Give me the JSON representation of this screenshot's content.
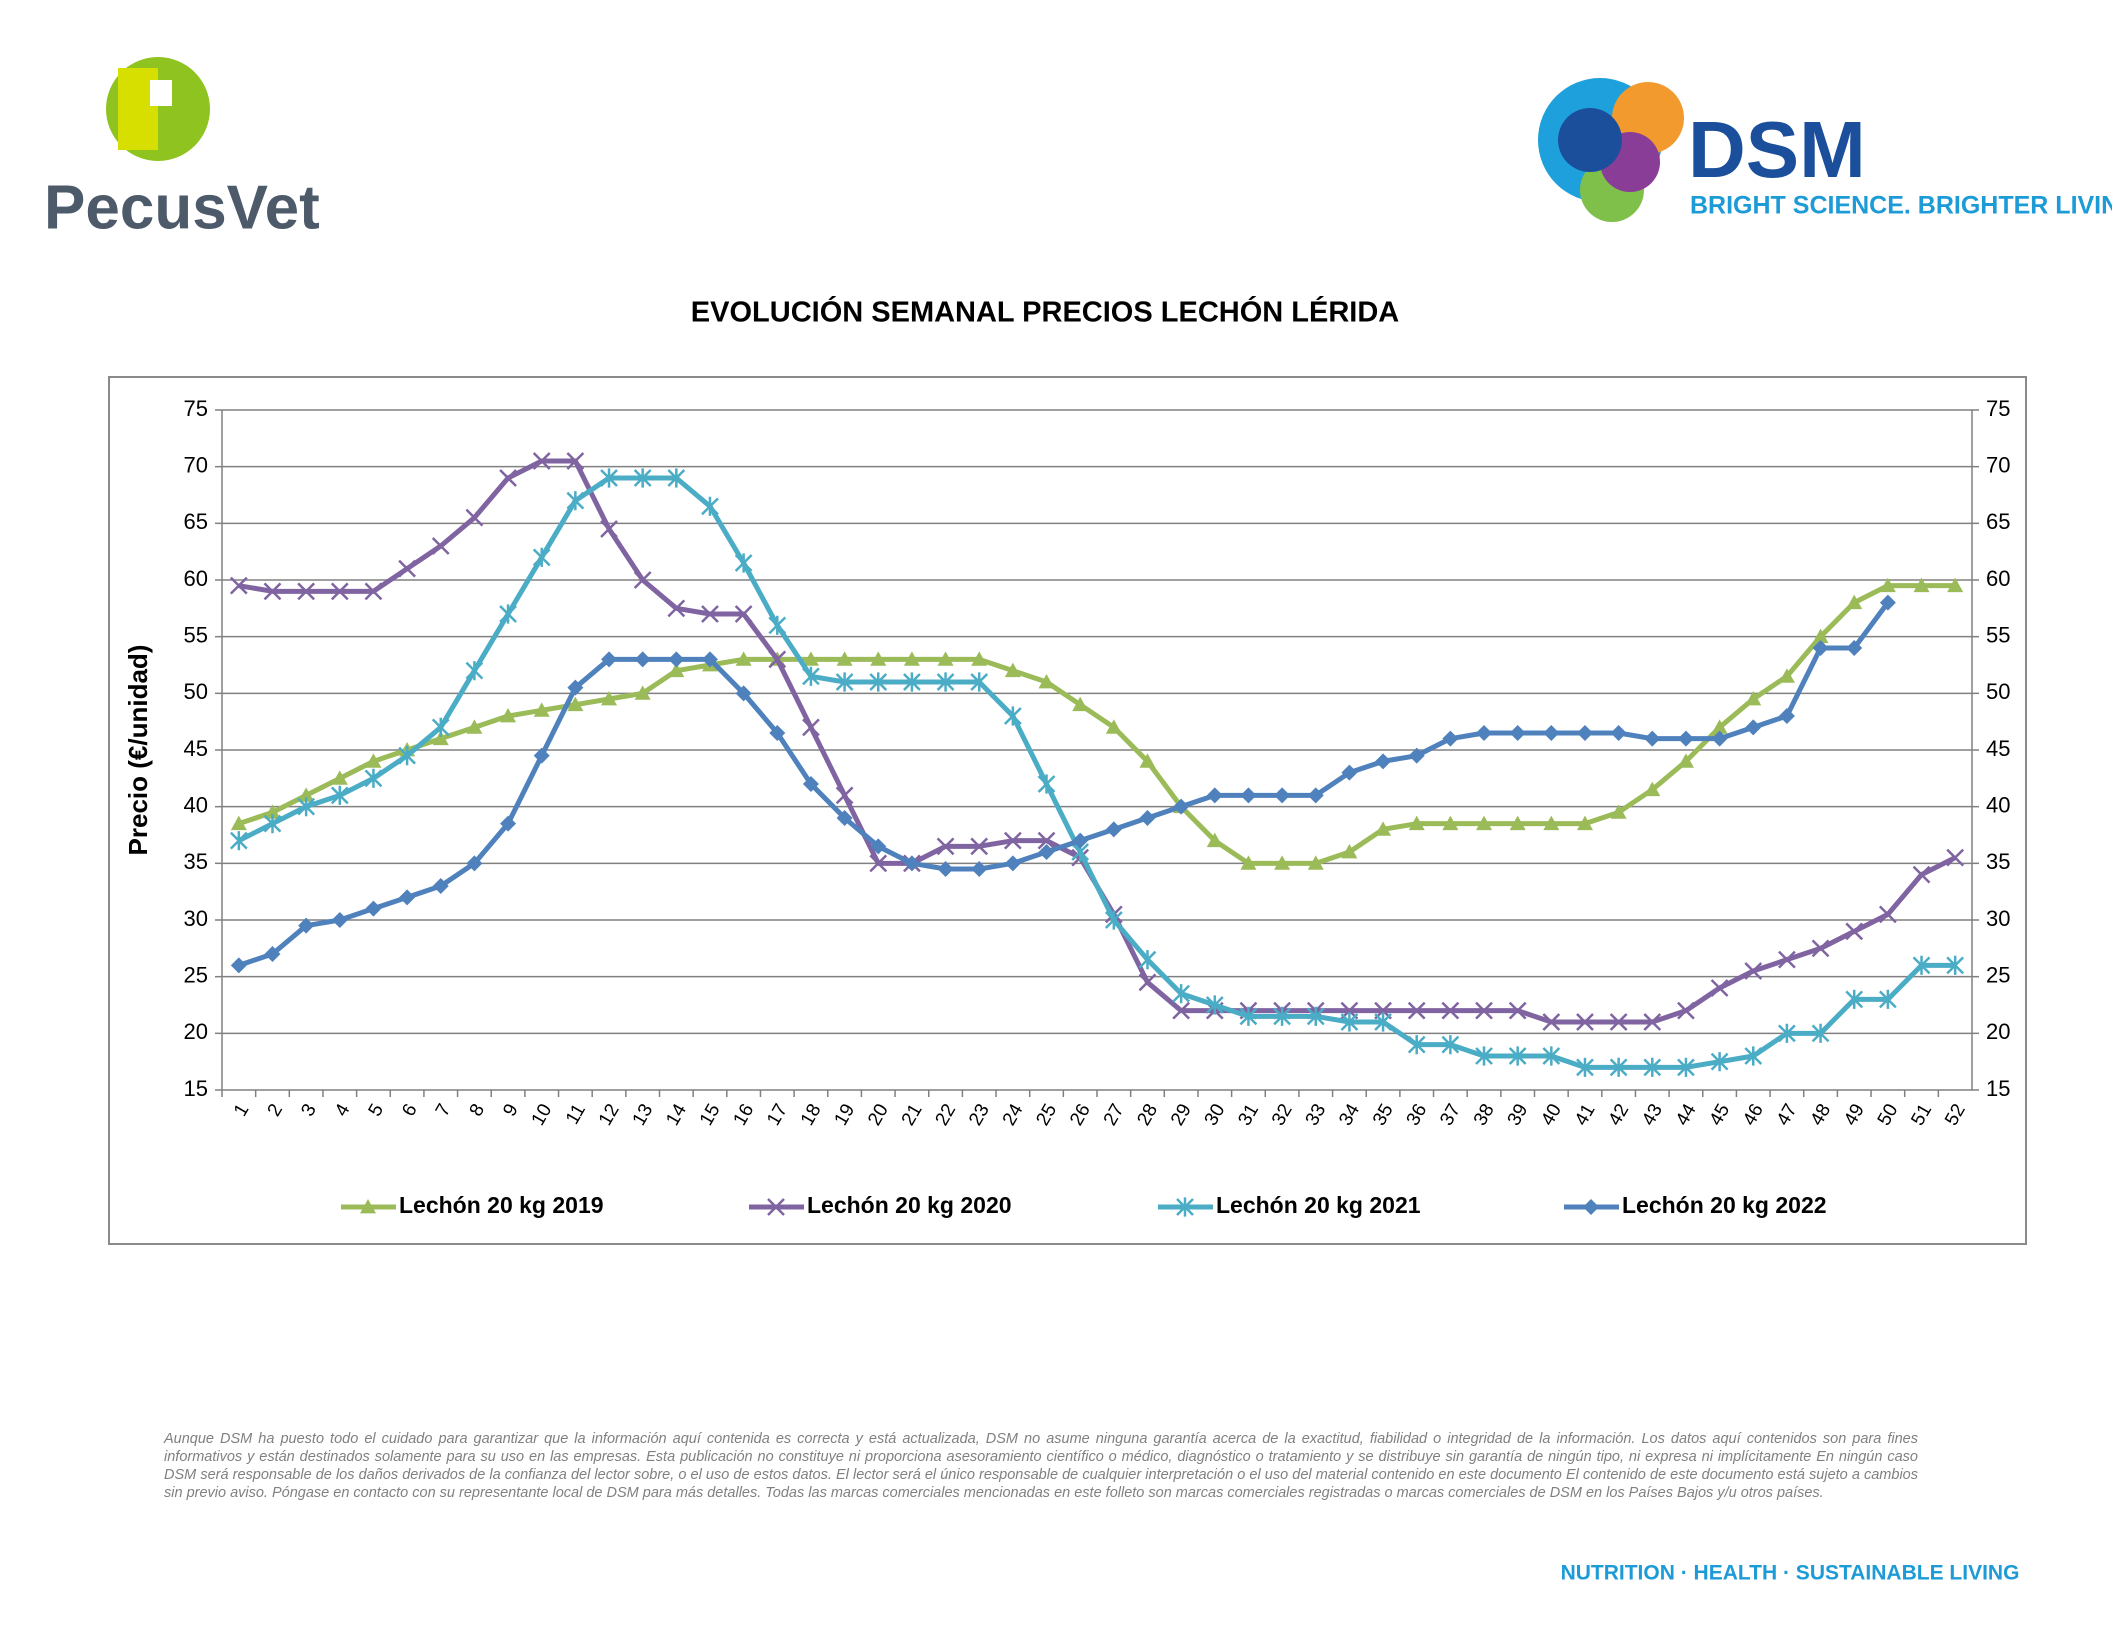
{
  "header": {
    "left_logo": "PecusVet",
    "right_logo": "DSM",
    "right_slogan": "BRIGHT SCIENCE. BRIGHTER LIVING."
  },
  "chart_data": {
    "type": "line",
    "title": "EVOLUCIÓN SEMANAL PRECIOS LECHÓN LÉRIDA",
    "y_label": "Precio (€/unidad)",
    "categories": [
      1,
      2,
      3,
      4,
      5,
      6,
      7,
      8,
      9,
      10,
      11,
      12,
      13,
      14,
      15,
      16,
      17,
      18,
      19,
      20,
      21,
      22,
      23,
      24,
      25,
      26,
      27,
      28,
      29,
      30,
      31,
      32,
      33,
      34,
      35,
      36,
      37,
      38,
      39,
      40,
      41,
      42,
      43,
      44,
      45,
      46,
      47,
      48,
      49,
      50,
      51,
      52
    ],
    "series": [
      {
        "name": "Lechón 20 kg 2019",
        "color": "#9bbb59",
        "marker": "triangle",
        "values": [
          38.5,
          39.5,
          41,
          42.5,
          44,
          45,
          46,
          47,
          48,
          48.5,
          49,
          49.5,
          50,
          52,
          52.5,
          53,
          53,
          53,
          53,
          53,
          53,
          53,
          53,
          52,
          51,
          49,
          47,
          44,
          40,
          37,
          35,
          35,
          35,
          36,
          38,
          38.5,
          38.5,
          38.5,
          38.5,
          38.5,
          38.5,
          39.5,
          41.5,
          44,
          47,
          49.5,
          51.5,
          55,
          58,
          59.5,
          59.5,
          59.5
        ]
      },
      {
        "name": "Lechón 20 kg 2020",
        "color": "#8064a2",
        "marker": "x",
        "values": [
          59.5,
          59,
          59,
          59,
          59,
          61,
          63,
          65.5,
          69,
          70.5,
          70.5,
          64.5,
          60,
          57.5,
          57,
          57,
          53,
          47,
          41,
          35,
          35,
          36.5,
          36.5,
          37,
          37,
          35.5,
          30.5,
          24.5,
          22,
          22,
          22,
          22,
          22,
          22,
          22,
          22,
          22,
          22,
          22,
          21,
          21,
          21,
          21,
          22,
          24,
          25.5,
          26.5,
          27.5,
          29,
          30.5,
          34,
          35.5
        ]
      },
      {
        "name": "Lechón 20 kg 2021",
        "color": "#4bacc6",
        "marker": "star",
        "values": [
          37,
          38.5,
          40,
          41,
          42.5,
          44.5,
          47,
          52,
          57,
          62,
          67,
          69,
          69,
          69,
          66.5,
          61.5,
          56,
          51.5,
          51,
          51,
          51,
          51,
          51,
          48,
          42,
          36,
          30,
          26.5,
          23.5,
          22.5,
          21.5,
          21.5,
          21.5,
          21,
          21,
          19,
          19,
          18,
          18,
          18,
          17,
          17,
          17,
          17,
          17.5,
          18,
          20,
          20,
          23,
          23,
          26,
          26
        ]
      },
      {
        "name": "Lechón 20 kg 2022",
        "color": "#4f81bd",
        "marker": "diamond",
        "values": [
          26,
          27,
          29.5,
          30,
          31,
          32,
          33,
          35,
          38.5,
          44.5,
          50.5,
          53,
          53,
          53,
          53,
          50,
          46.5,
          42,
          39,
          36.5,
          35,
          34.5,
          34.5,
          35,
          36,
          37,
          38,
          39,
          40,
          41,
          41,
          41,
          41,
          43,
          44,
          44.5,
          46,
          46.5,
          46.5,
          46.5,
          46.5,
          46.5,
          46,
          46,
          46,
          47,
          48,
          54,
          54,
          58,
          null,
          null
        ]
      }
    ],
    "ylim": [
      15,
      75
    ],
    "yticks": [
      15,
      20,
      25,
      30,
      35,
      40,
      45,
      50,
      55,
      60,
      65,
      70,
      75
    ],
    "y2lim": [
      15,
      75
    ],
    "y2ticks": [
      15,
      20,
      25,
      30,
      35,
      40,
      45,
      50,
      55,
      60,
      65,
      70,
      75
    ],
    "grid": true,
    "legend": "bottom"
  },
  "footer": {
    "disclaimer": "Aunque DSM ha puesto todo el cuidado para garantizar que la información aquí contenida es correcta y está actualizada, DSM no asume ninguna garantía acerca de la exactitud, fiabilidad o integridad de la información. Los datos aquí contenidos son para fines informativos y están destinados solamente para su uso en las empresas. Esta publicación no constituye ni proporciona asesoramiento científico o médico, diagnóstico o tratamiento y se distribuye sin garantía de ningún tipo, ni expresa ni implícitamente En ningún caso DSM será responsable de los daños derivados de la confianza del lector sobre, o el uso de estos datos. El lector será el único responsable de cualquier interpretación o el uso del material contenido en este documento El contenido de este documento está sujeto a cambios sin previo aviso. Póngase en contacto con su representante local de DSM para más detalles. Todas las marcas comerciales mencionadas en este folleto son marcas comerciales registradas o marcas comerciales de DSM en los Países Bajos y/u otros países.",
    "tagline": "NUTRITION · HEALTH · SUSTAINABLE LIVING"
  }
}
